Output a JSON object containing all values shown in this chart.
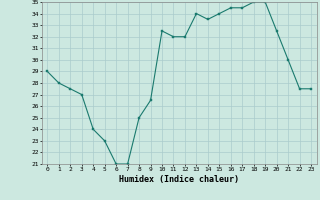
{
  "x": [
    0,
    1,
    2,
    3,
    4,
    5,
    6,
    7,
    8,
    9,
    10,
    11,
    12,
    13,
    14,
    15,
    16,
    17,
    18,
    19,
    20,
    21,
    22,
    23
  ],
  "y": [
    29,
    28,
    27.5,
    27,
    24,
    23,
    21,
    21,
    25,
    26.5,
    32.5,
    32,
    32,
    34,
    33.5,
    34,
    34.5,
    34.5,
    35,
    35,
    32.5,
    30,
    27.5,
    27.5
  ],
  "xlabel": "Humidex (Indice chaleur)",
  "ylim": [
    21,
    35
  ],
  "xlim": [
    -0.5,
    23.5
  ],
  "yticks": [
    21,
    22,
    23,
    24,
    25,
    26,
    27,
    28,
    29,
    30,
    31,
    32,
    33,
    34,
    35
  ],
  "xticks": [
    0,
    1,
    2,
    3,
    4,
    5,
    6,
    7,
    8,
    9,
    10,
    11,
    12,
    13,
    14,
    15,
    16,
    17,
    18,
    19,
    20,
    21,
    22,
    23
  ],
  "line_color": "#1a7a6e",
  "marker_color": "#1a7a6e",
  "bg_color": "#cce8e0",
  "grid_color": "#aacccc"
}
